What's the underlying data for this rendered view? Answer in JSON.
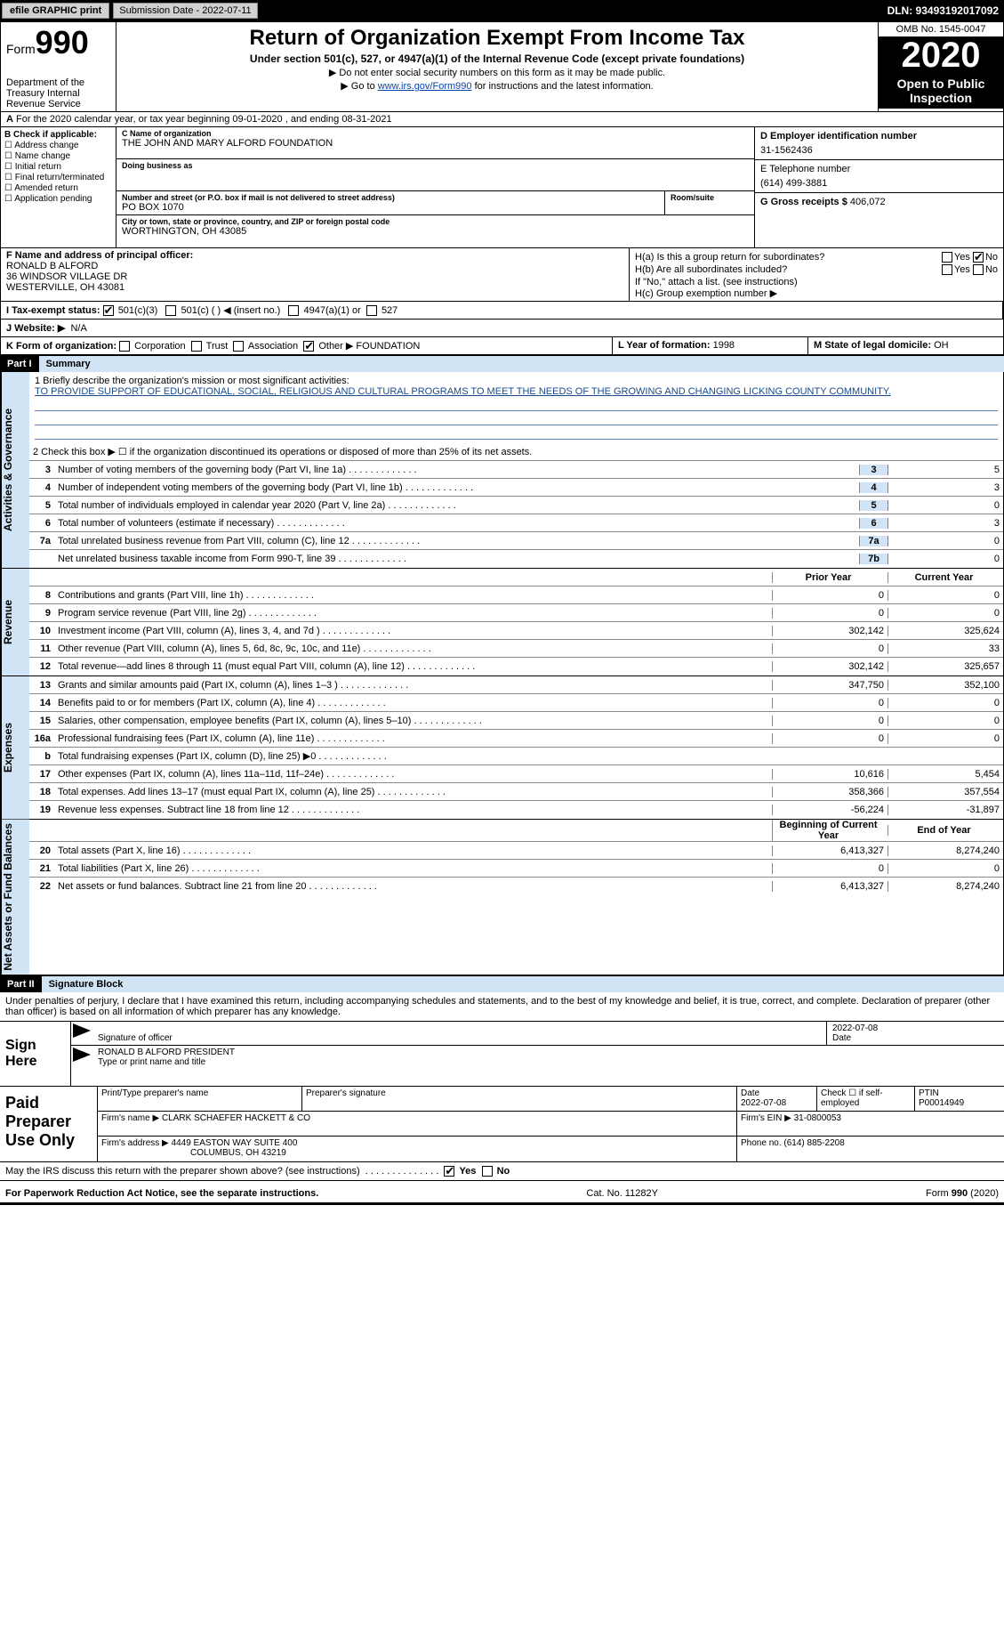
{
  "topbar": {
    "efile_label": "efile GRAPHIC print",
    "submission_label": "Submission Date - 2022-07-11",
    "dln": "DLN: 93493192017092"
  },
  "header": {
    "form_prefix": "Form",
    "form_no": "990",
    "dept": "Department of the Treasury Internal Revenue Service",
    "title": "Return of Organization Exempt From Income Tax",
    "subtitle": "Under section 501(c), 527, or 4947(a)(1) of the Internal Revenue Code (except private foundations)",
    "note1": "▶ Do not enter social security numbers on this form as it may be made public.",
    "note2_prefix": "▶ Go to ",
    "note2_link": "www.irs.gov/Form990",
    "note2_suffix": " for instructions and the latest information.",
    "omb": "OMB No. 1545-0047",
    "year": "2020",
    "open": "Open to Public Inspection"
  },
  "line_a": "For the 2020 calendar year, or tax year beginning 09-01-2020   , and ending 08-31-2021",
  "b": {
    "title": "B Check if applicable:",
    "opts": [
      "☐ Address change",
      "☐ Name change",
      "☐ Initial return",
      "☐ Final return/terminated",
      "☐ Amended return",
      "☐ Application pending"
    ]
  },
  "c": {
    "name_label": "C Name of organization",
    "name": "THE JOHN AND MARY ALFORD FOUNDATION",
    "dba_label": "Doing business as",
    "addr_label": "Number and street (or P.O. box if mail is not delivered to street address)",
    "room_label": "Room/suite",
    "addr": "PO BOX 1070",
    "city_label": "City or town, state or province, country, and ZIP or foreign postal code",
    "city": "WORTHINGTON, OH  43085"
  },
  "d_label": "D Employer identification number",
  "d_val": "31-1562436",
  "e_label": "E Telephone number",
  "e_val": "(614) 499-3881",
  "g_label": "G Gross receipts $",
  "g_val": "406,072",
  "f": {
    "label": "F  Name and address of principal officer:",
    "name": "RONALD B ALFORD",
    "addr1": "36 WINDSOR VILLAGE DR",
    "addr2": "WESTERVILLE, OH  43081"
  },
  "h": {
    "a": "H(a)  Is this a group return for subordinates?",
    "a_yes": "Yes",
    "a_no": "No",
    "b": "H(b)  Are all subordinates included?",
    "b_yes": "Yes",
    "b_no": "No",
    "note": "If \"No,\" attach a list. (see instructions)",
    "c": "H(c)  Group exemption number ▶"
  },
  "i": {
    "label": "I   Tax-exempt status:",
    "c3": "501(c)(3)",
    "c": "501(c) (    ) ◀ (insert no.)",
    "a1": "4947(a)(1) or",
    "s527": "527"
  },
  "j": {
    "label": "J   Website: ▶",
    "val": "N/A"
  },
  "k": {
    "label": "K Form of organization:",
    "corp": "Corporation",
    "trust": "Trust",
    "assoc": "Association",
    "other": "Other ▶",
    "other_val": "FOUNDATION"
  },
  "l": {
    "label": "L Year of formation:",
    "val": "1998"
  },
  "m": {
    "label": "M State of legal domicile:",
    "val": "OH"
  },
  "part1": {
    "num": "Part I",
    "title": "Summary"
  },
  "mission": {
    "label": "1   Briefly describe the organization's mission or most significant activities:",
    "text": "TO PROVIDE SUPPORT OF EDUCATIONAL, SOCIAL, RELIGIOUS AND CULTURAL PROGRAMS TO MEET THE NEEDS OF THE GROWING AND CHANGING LICKING COUNTY COMMUNITY."
  },
  "line2": "2   Check this box ▶ ☐  if the organization discontinued its operations or disposed of more than 25% of its net assets.",
  "gov_rows": [
    {
      "n": "3",
      "d": "Number of voting members of the governing body (Part VI, line 1a)",
      "box": "3",
      "v": "5"
    },
    {
      "n": "4",
      "d": "Number of independent voting members of the governing body (Part VI, line 1b)",
      "box": "4",
      "v": "3"
    },
    {
      "n": "5",
      "d": "Total number of individuals employed in calendar year 2020 (Part V, line 2a)",
      "box": "5",
      "v": "0"
    },
    {
      "n": "6",
      "d": "Total number of volunteers (estimate if necessary)",
      "box": "6",
      "v": "3"
    },
    {
      "n": "7a",
      "d": "Total unrelated business revenue from Part VIII, column (C), line 12",
      "box": "7a",
      "v": "0"
    },
    {
      "n": "",
      "d": "Net unrelated business taxable income from Form 990-T, line 39",
      "box": "7b",
      "v": "0"
    }
  ],
  "col_prior": "Prior Year",
  "col_current": "Current Year",
  "rev_rows": [
    {
      "n": "8",
      "d": "Contributions and grants (Part VIII, line 1h)",
      "p": "0",
      "c": "0"
    },
    {
      "n": "9",
      "d": "Program service revenue (Part VIII, line 2g)",
      "p": "0",
      "c": "0"
    },
    {
      "n": "10",
      "d": "Investment income (Part VIII, column (A), lines 3, 4, and 7d )",
      "p": "302,142",
      "c": "325,624"
    },
    {
      "n": "11",
      "d": "Other revenue (Part VIII, column (A), lines 5, 6d, 8c, 9c, 10c, and 11e)",
      "p": "0",
      "c": "33"
    },
    {
      "n": "12",
      "d": "Total revenue—add lines 8 through 11 (must equal Part VIII, column (A), line 12)",
      "p": "302,142",
      "c": "325,657"
    }
  ],
  "exp_rows": [
    {
      "n": "13",
      "d": "Grants and similar amounts paid (Part IX, column (A), lines 1–3 )",
      "p": "347,750",
      "c": "352,100"
    },
    {
      "n": "14",
      "d": "Benefits paid to or for members (Part IX, column (A), line 4)",
      "p": "0",
      "c": "0"
    },
    {
      "n": "15",
      "d": "Salaries, other compensation, employee benefits (Part IX, column (A), lines 5–10)",
      "p": "0",
      "c": "0"
    },
    {
      "n": "16a",
      "d": "Professional fundraising fees (Part IX, column (A), line 11e)",
      "p": "0",
      "c": "0"
    },
    {
      "n": "b",
      "d": "Total fundraising expenses (Part IX, column (D), line 25) ▶0",
      "p": "",
      "c": "",
      "shaded": true
    },
    {
      "n": "17",
      "d": "Other expenses (Part IX, column (A), lines 11a–11d, 11f–24e)",
      "p": "10,616",
      "c": "5,454"
    },
    {
      "n": "18",
      "d": "Total expenses. Add lines 13–17 (must equal Part IX, column (A), line 25)",
      "p": "358,366",
      "c": "357,554"
    },
    {
      "n": "19",
      "d": "Revenue less expenses. Subtract line 18 from line 12",
      "p": "-56,224",
      "c": "-31,897"
    }
  ],
  "col_begin": "Beginning of Current Year",
  "col_end": "End of Year",
  "na_rows": [
    {
      "n": "20",
      "d": "Total assets (Part X, line 16)",
      "p": "6,413,327",
      "c": "8,274,240"
    },
    {
      "n": "21",
      "d": "Total liabilities (Part X, line 26)",
      "p": "0",
      "c": "0"
    },
    {
      "n": "22",
      "d": "Net assets or fund balances. Subtract line 21 from line 20",
      "p": "6,413,327",
      "c": "8,274,240"
    }
  ],
  "part2": {
    "num": "Part II",
    "title": "Signature Block"
  },
  "sig_decl": "Under penalties of perjury, I declare that I have examined this return, including accompanying schedules and statements, and to the best of my knowledge and belief, it is true, correct, and complete. Declaration of preparer (other than officer) is based on all information of which preparer has any knowledge.",
  "sign_here": "Sign Here",
  "sig_officer_label": "Signature of officer",
  "sig_date": "2022-07-08",
  "sig_date_label": "Date",
  "sig_name": "RONALD B ALFORD  PRESIDENT",
  "sig_name_label": "Type or print name and title",
  "paid": {
    "title": "Paid Preparer Use Only",
    "h1": "Print/Type preparer's name",
    "h2": "Preparer's signature",
    "h3": "Date",
    "date": "2022-07-08",
    "h4": "Check ☐ if self-employed",
    "h5": "PTIN",
    "ptin": "P00014949",
    "firm_label": "Firm's name    ▶",
    "firm": "CLARK SCHAEFER HACKETT & CO",
    "ein_label": "Firm's EIN ▶",
    "ein": "31-0800053",
    "addr_label": "Firm's address ▶",
    "addr": "4449 EASTON WAY SUITE 400",
    "addr2": "COLUMBUS, OH  43219",
    "phone_label": "Phone no.",
    "phone": "(614) 885-2208"
  },
  "discuss": "May the IRS discuss this return with the preparer shown above? (see instructions)",
  "discuss_yes": "Yes",
  "discuss_no": "No",
  "footer": {
    "left": "For Paperwork Reduction Act Notice, see the separate instructions.",
    "mid": "Cat. No. 11282Y",
    "right_prefix": "Form ",
    "right_form": "990",
    "right_suffix": " (2020)"
  },
  "sides": {
    "gov": "Activities & Governance",
    "rev": "Revenue",
    "exp": "Expenses",
    "na": "Net Assets or Fund Balances"
  },
  "colors": {
    "header_blue": "#d0e4f5",
    "link": "#0645ad",
    "mission_text": "#1a4b8c",
    "rule_blue": "#5b7fbf"
  }
}
